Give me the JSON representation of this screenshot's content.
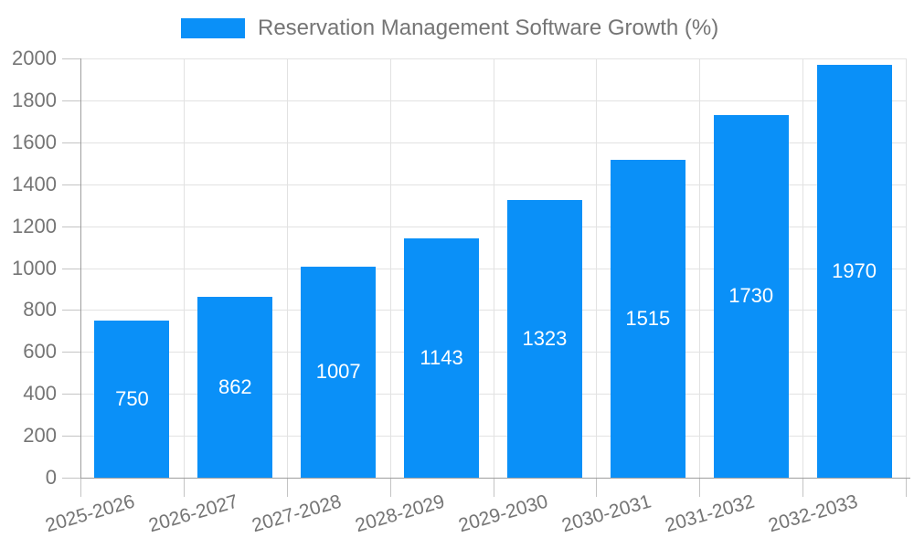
{
  "legend": {
    "label": "Reservation Management Software Growth (%)"
  },
  "colors": {
    "bar": "#0a90f8",
    "axis_text": "#757575",
    "value_label": "#ffffff",
    "gridline": "#e2e2e2",
    "axis_line": "#9e9e9e"
  },
  "chart_data": {
    "type": "bar",
    "title": "",
    "xlabel": "",
    "ylabel": "",
    "categories": [
      "2025-2026",
      "2026-2027",
      "2027-2028",
      "2028-2029",
      "2029-2030",
      "2030-2031",
      "2031-2032",
      "2032-2033"
    ],
    "values": [
      750,
      862,
      1007,
      1143,
      1323,
      1515,
      1730,
      1970
    ],
    "series": [
      {
        "name": "Reservation Management Software Growth (%)",
        "values": [
          750,
          862,
          1007,
          1143,
          1323,
          1515,
          1730,
          1970
        ]
      }
    ],
    "ylim": [
      0,
      2000
    ],
    "yticks": [
      0,
      200,
      400,
      600,
      800,
      1000,
      1200,
      1400,
      1600,
      1800,
      2000
    ],
    "bar_color": "#0a90f8",
    "value_labels": "inside-center",
    "value_label_color": "#ffffff",
    "grid": true,
    "x_label_rotation_deg": -16,
    "legend_position": "top"
  }
}
